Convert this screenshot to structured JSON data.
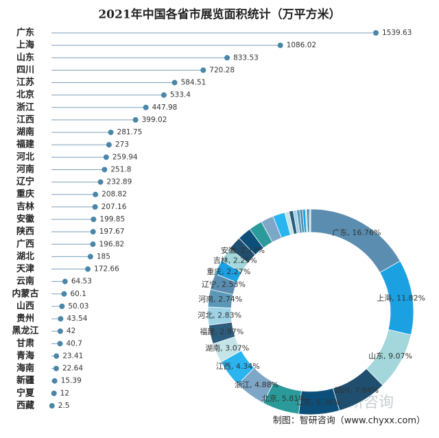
{
  "chart_data": [
    {
      "type": "lollipop",
      "title": "2021年中国各省市展览面积统计（万平方米）",
      "color": "#4a86a8",
      "categories": [
        "广东",
        "上海",
        "山东",
        "四川",
        "江苏",
        "北京",
        "浙江",
        "江西",
        "湖南",
        "福建",
        "河北",
        "河南",
        "辽宁",
        "重庆",
        "吉林",
        "安徽",
        "陕西",
        "广西",
        "湖北",
        "天津",
        "云南",
        "内蒙古",
        "山西",
        "贵州",
        "黑龙江",
        "甘肃",
        "青海",
        "海南",
        "新疆",
        "宁夏",
        "西藏"
      ],
      "values": [
        1539.63,
        1086.02,
        833.53,
        720.28,
        584.51,
        533.4,
        447.98,
        399.02,
        281.75,
        273,
        259.94,
        251.8,
        232.89,
        208.82,
        207.16,
        199.85,
        197.67,
        196.82,
        185,
        172.66,
        64.53,
        60.1,
        50.03,
        43.54,
        42,
        40.7,
        23.41,
        22.64,
        15.39,
        12,
        2.5
      ]
    },
    {
      "type": "donut",
      "colors": [
        "#5b8db0",
        "#1ba1e2",
        "#a3d7db",
        "#1f4e6e",
        "#0b4f7a",
        "#2a9a9a",
        "#7ea6c6",
        "#2ab4f0",
        "#c4e4e8",
        "#2d5d7c",
        "#9fd3e6",
        "#5a98b6"
      ],
      "values": [
        16.76,
        11.82,
        9.07,
        7.84,
        6.36,
        5.81,
        4.88,
        4.34,
        3.07,
        2.97,
        2.83,
        2.74,
        2.53,
        2.27,
        2.25,
        2.17,
        2.15,
        2.14,
        2.01,
        1.88,
        0.7,
        0.65,
        0.54,
        0.47,
        0.46,
        0.44,
        0.25,
        0.25,
        0.17,
        0.13,
        0.03
      ],
      "value_labels": [
        "广东, 16.76%",
        "上海, 11.82%",
        "山东, 9.07%",
        "四川, 7.84%",
        "江苏, 6.36%",
        "北京, 5.81%",
        "浙江, 4.88%",
        "江西, 4.34%",
        "湖南, 3.07%",
        "福建, 2.97%",
        "河北, 2.83%",
        "河南, 2.74%",
        "辽宁, 2.53%",
        "重庆, 2.27%",
        "吉林, 2.25%",
        "安徽, 2.17%",
        null,
        null,
        null,
        null,
        null,
        null,
        null,
        null,
        null,
        null,
        null,
        null,
        null,
        null,
        null
      ]
    }
  ],
  "watermark": "智研咨询",
  "source": "制图：智研咨询（www.chyxx.com）"
}
